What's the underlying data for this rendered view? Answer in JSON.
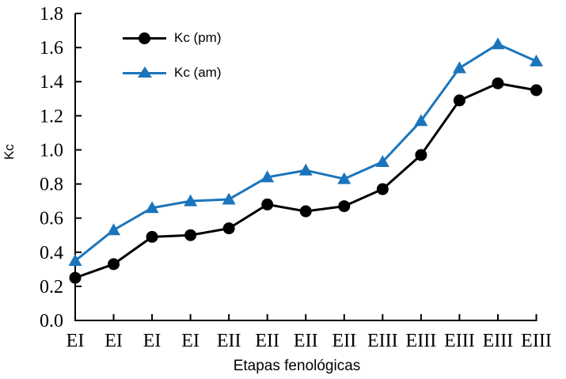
{
  "chart_data": {
    "type": "line",
    "title": "",
    "xlabel": "Etapas fenológicas",
    "ylabel": "Kc",
    "ylim": [
      0.0,
      1.8
    ],
    "yticks": [
      "0.0",
      "0.2",
      "0.4",
      "0.6",
      "0.8",
      "1.0",
      "1.2",
      "1.4",
      "1.6",
      "1.8"
    ],
    "grid": false,
    "legend_position": "upper-left-inside",
    "axis_color": "#000000",
    "categories": [
      "EI",
      "EI",
      "EI",
      "EI",
      "EII",
      "EII",
      "EII",
      "EII",
      "EIII",
      "EIII",
      "EIII",
      "EIII",
      "EIII"
    ],
    "series": [
      {
        "name": "Kc (pm)",
        "color": "#000000",
        "marker": "circle",
        "values": [
          0.25,
          0.33,
          0.49,
          0.5,
          0.54,
          0.68,
          0.64,
          0.67,
          0.77,
          0.97,
          1.29,
          1.39,
          1.35
        ]
      },
      {
        "name": "Kc (am)",
        "color": "#1b75bc",
        "marker": "triangle-up",
        "values": [
          0.35,
          0.53,
          0.66,
          0.7,
          0.71,
          0.84,
          0.88,
          0.83,
          0.93,
          1.17,
          1.48,
          1.62,
          1.52
        ]
      }
    ]
  }
}
